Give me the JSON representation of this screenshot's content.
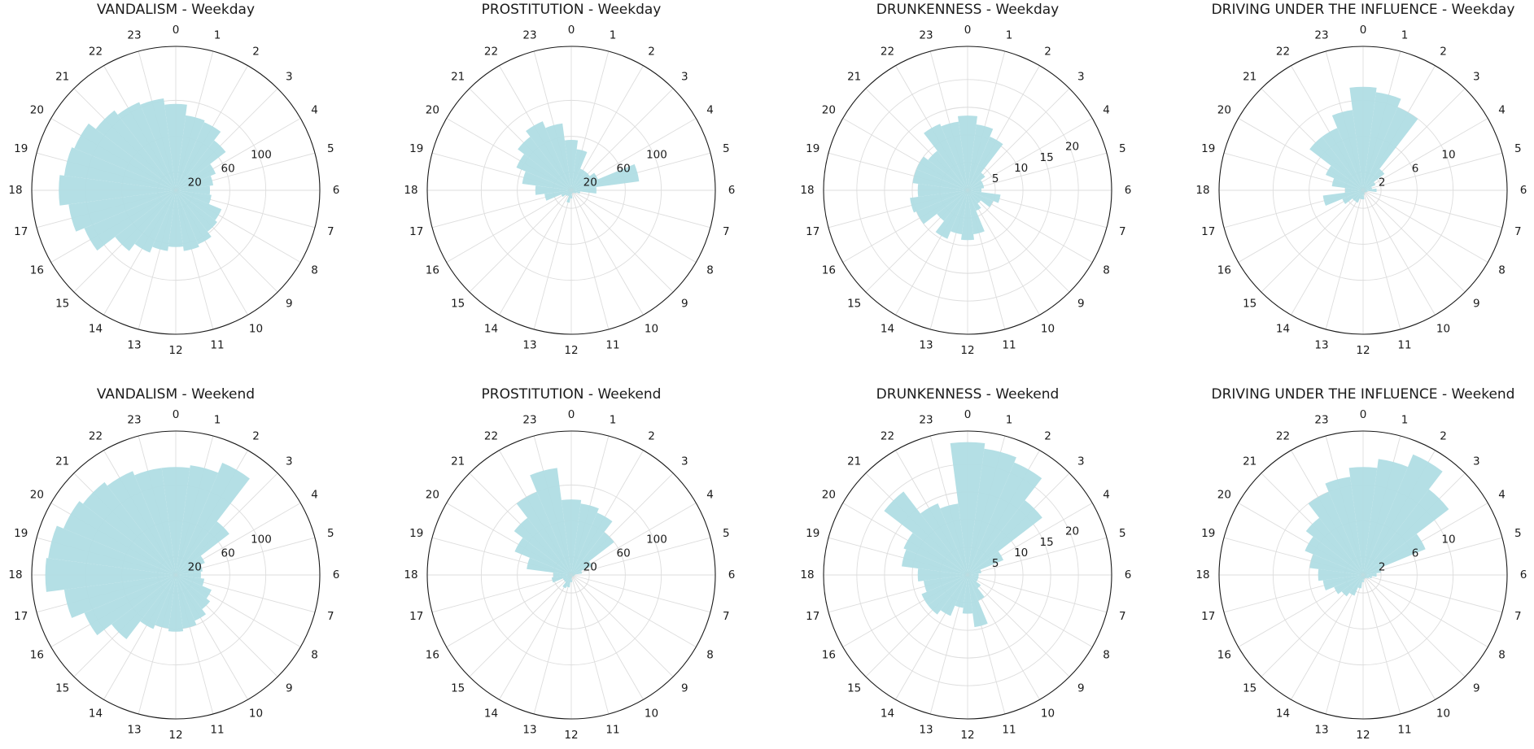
{
  "figure": {
    "bar_color": "#b0dde4",
    "grid_color": "#dddddd",
    "frame_color": "#1a1a1a"
  },
  "chart_data": [
    {
      "type": "bar",
      "projection": "polar",
      "title": "VANDALISM - Weekday",
      "theta_categories": [
        0,
        1,
        2,
        3,
        4,
        5,
        6,
        7,
        8,
        9,
        10,
        11,
        12,
        13,
        14,
        15,
        16,
        17,
        18,
        19,
        20,
        21,
        22,
        23
      ],
      "rticks": [
        20,
        60,
        100
      ],
      "rlim": [
        0,
        160
      ],
      "grid": true,
      "values": [
        96,
        84,
        82,
        70,
        48,
        42,
        38,
        40,
        55,
        58,
        65,
        68,
        63,
        68,
        75,
        85,
        110,
        120,
        130,
        125,
        122,
        112,
        106,
        103
      ]
    },
    {
      "type": "bar",
      "projection": "polar",
      "title": "PROSTITUTION - Weekday",
      "theta_categories": [
        0,
        1,
        2,
        3,
        4,
        5,
        6,
        7,
        8,
        9,
        10,
        11,
        12,
        13,
        14,
        15,
        16,
        17,
        18,
        19,
        20,
        21,
        22,
        23
      ],
      "rticks": [
        20,
        60,
        100
      ],
      "rlim": [
        0,
        160
      ],
      "grid": true,
      "values": [
        56,
        46,
        26,
        26,
        32,
        76,
        28,
        10,
        6,
        4,
        3,
        4,
        9,
        14,
        7,
        8,
        12,
        30,
        40,
        55,
        66,
        75,
        83,
        75
      ]
    },
    {
      "type": "bar",
      "projection": "polar",
      "title": "DRUNKENNESS - Weekday",
      "theta_categories": [
        0,
        1,
        2,
        3,
        4,
        5,
        6,
        7,
        8,
        9,
        10,
        11,
        12,
        13,
        14,
        15,
        16,
        17,
        18,
        19,
        20,
        21,
        22,
        23
      ],
      "rticks": [
        5,
        10,
        15,
        20
      ],
      "rlim": [
        0,
        26
      ],
      "grid": true,
      "values": [
        13.5,
        12,
        10.5,
        4,
        3,
        3,
        2.5,
        6,
        5,
        3,
        4,
        8,
        9,
        8,
        9.5,
        7,
        10,
        10.5,
        9,
        10,
        10,
        9,
        13,
        12.5
      ]
    },
    {
      "type": "bar",
      "projection": "polar",
      "title": "DRIVING UNDER THE INFLUENCE - Weekday",
      "theta_categories": [
        0,
        1,
        2,
        3,
        4,
        5,
        6,
        7,
        8,
        9,
        10,
        11,
        12,
        13,
        14,
        15,
        16,
        17,
        18,
        19,
        20,
        21,
        22,
        23
      ],
      "rticks": [
        2,
        6,
        10
      ],
      "rlim": [
        0,
        16
      ],
      "grid": true,
      "values": [
        11.5,
        11,
        10,
        3,
        1.5,
        1,
        1.5,
        0.5,
        0.4,
        0.3,
        0.3,
        0.5,
        1,
        1,
        1.5,
        1.5,
        2.5,
        4.5,
        2,
        3.5,
        4.5,
        7.5,
        7.5,
        9
      ]
    },
    {
      "type": "bar",
      "projection": "polar",
      "title": "VANDALISM - Weekend",
      "theta_categories": [
        0,
        1,
        2,
        3,
        4,
        5,
        6,
        7,
        8,
        9,
        10,
        11,
        12,
        13,
        14,
        15,
        16,
        17,
        18,
        19,
        20,
        21,
        22,
        23
      ],
      "rticks": [
        20,
        60,
        100
      ],
      "rlim": [
        0,
        160
      ],
      "grid": true,
      "values": [
        120,
        123,
        135,
        75,
        35,
        30,
        28,
        32,
        43,
        48,
        55,
        60,
        63,
        60,
        65,
        90,
        110,
        125,
        145,
        143,
        135,
        130,
        125,
        120
      ]
    },
    {
      "type": "bar",
      "projection": "polar",
      "title": "PROSTITUTION - Weekend",
      "theta_categories": [
        0,
        1,
        2,
        3,
        4,
        5,
        6,
        7,
        8,
        9,
        10,
        11,
        12,
        13,
        14,
        15,
        16,
        17,
        18,
        19,
        20,
        21,
        22,
        23
      ],
      "rticks": [
        20,
        60,
        100
      ],
      "rlim": [
        0,
        160
      ],
      "grid": true,
      "values": [
        84,
        80,
        75,
        60,
        25,
        12,
        4,
        3,
        3,
        2,
        2,
        3,
        8,
        14,
        16,
        10,
        10,
        22,
        20,
        50,
        68,
        80,
        100,
        120
      ]
    },
    {
      "type": "bar",
      "projection": "polar",
      "title": "DRUNKENNESS - Weekend",
      "theta_categories": [
        0,
        1,
        2,
        3,
        4,
        5,
        6,
        7,
        8,
        9,
        10,
        11,
        12,
        13,
        14,
        15,
        16,
        17,
        18,
        19,
        20,
        21,
        22,
        23
      ],
      "rticks": [
        5,
        10,
        15,
        20
      ],
      "rlim": [
        0,
        26
      ],
      "grid": true,
      "values": [
        24,
        23,
        22,
        17,
        7,
        2.5,
        2,
        2,
        2,
        3,
        5,
        9.5,
        7,
        6,
        8,
        9,
        9,
        8,
        9,
        12,
        12.5,
        19,
        14,
        13
      ]
    },
    {
      "type": "bar",
      "projection": "polar",
      "title": "DRIVING UNDER THE INFLUENCE - Weekend",
      "theta_categories": [
        0,
        1,
        2,
        3,
        4,
        5,
        6,
        7,
        8,
        9,
        10,
        11,
        12,
        13,
        14,
        15,
        16,
        17,
        18,
        19,
        20,
        21,
        22,
        23
      ],
      "rticks": [
        2,
        6,
        10
      ],
      "rlim": [
        0,
        16
      ],
      "grid": true,
      "values": [
        12,
        13,
        14.5,
        12,
        7.5,
        2,
        1.5,
        1,
        0.7,
        0.5,
        0.4,
        0.5,
        0.8,
        1.5,
        2.5,
        3,
        3.5,
        4.5,
        5,
        6,
        7,
        8,
        10,
        11
      ]
    }
  ]
}
